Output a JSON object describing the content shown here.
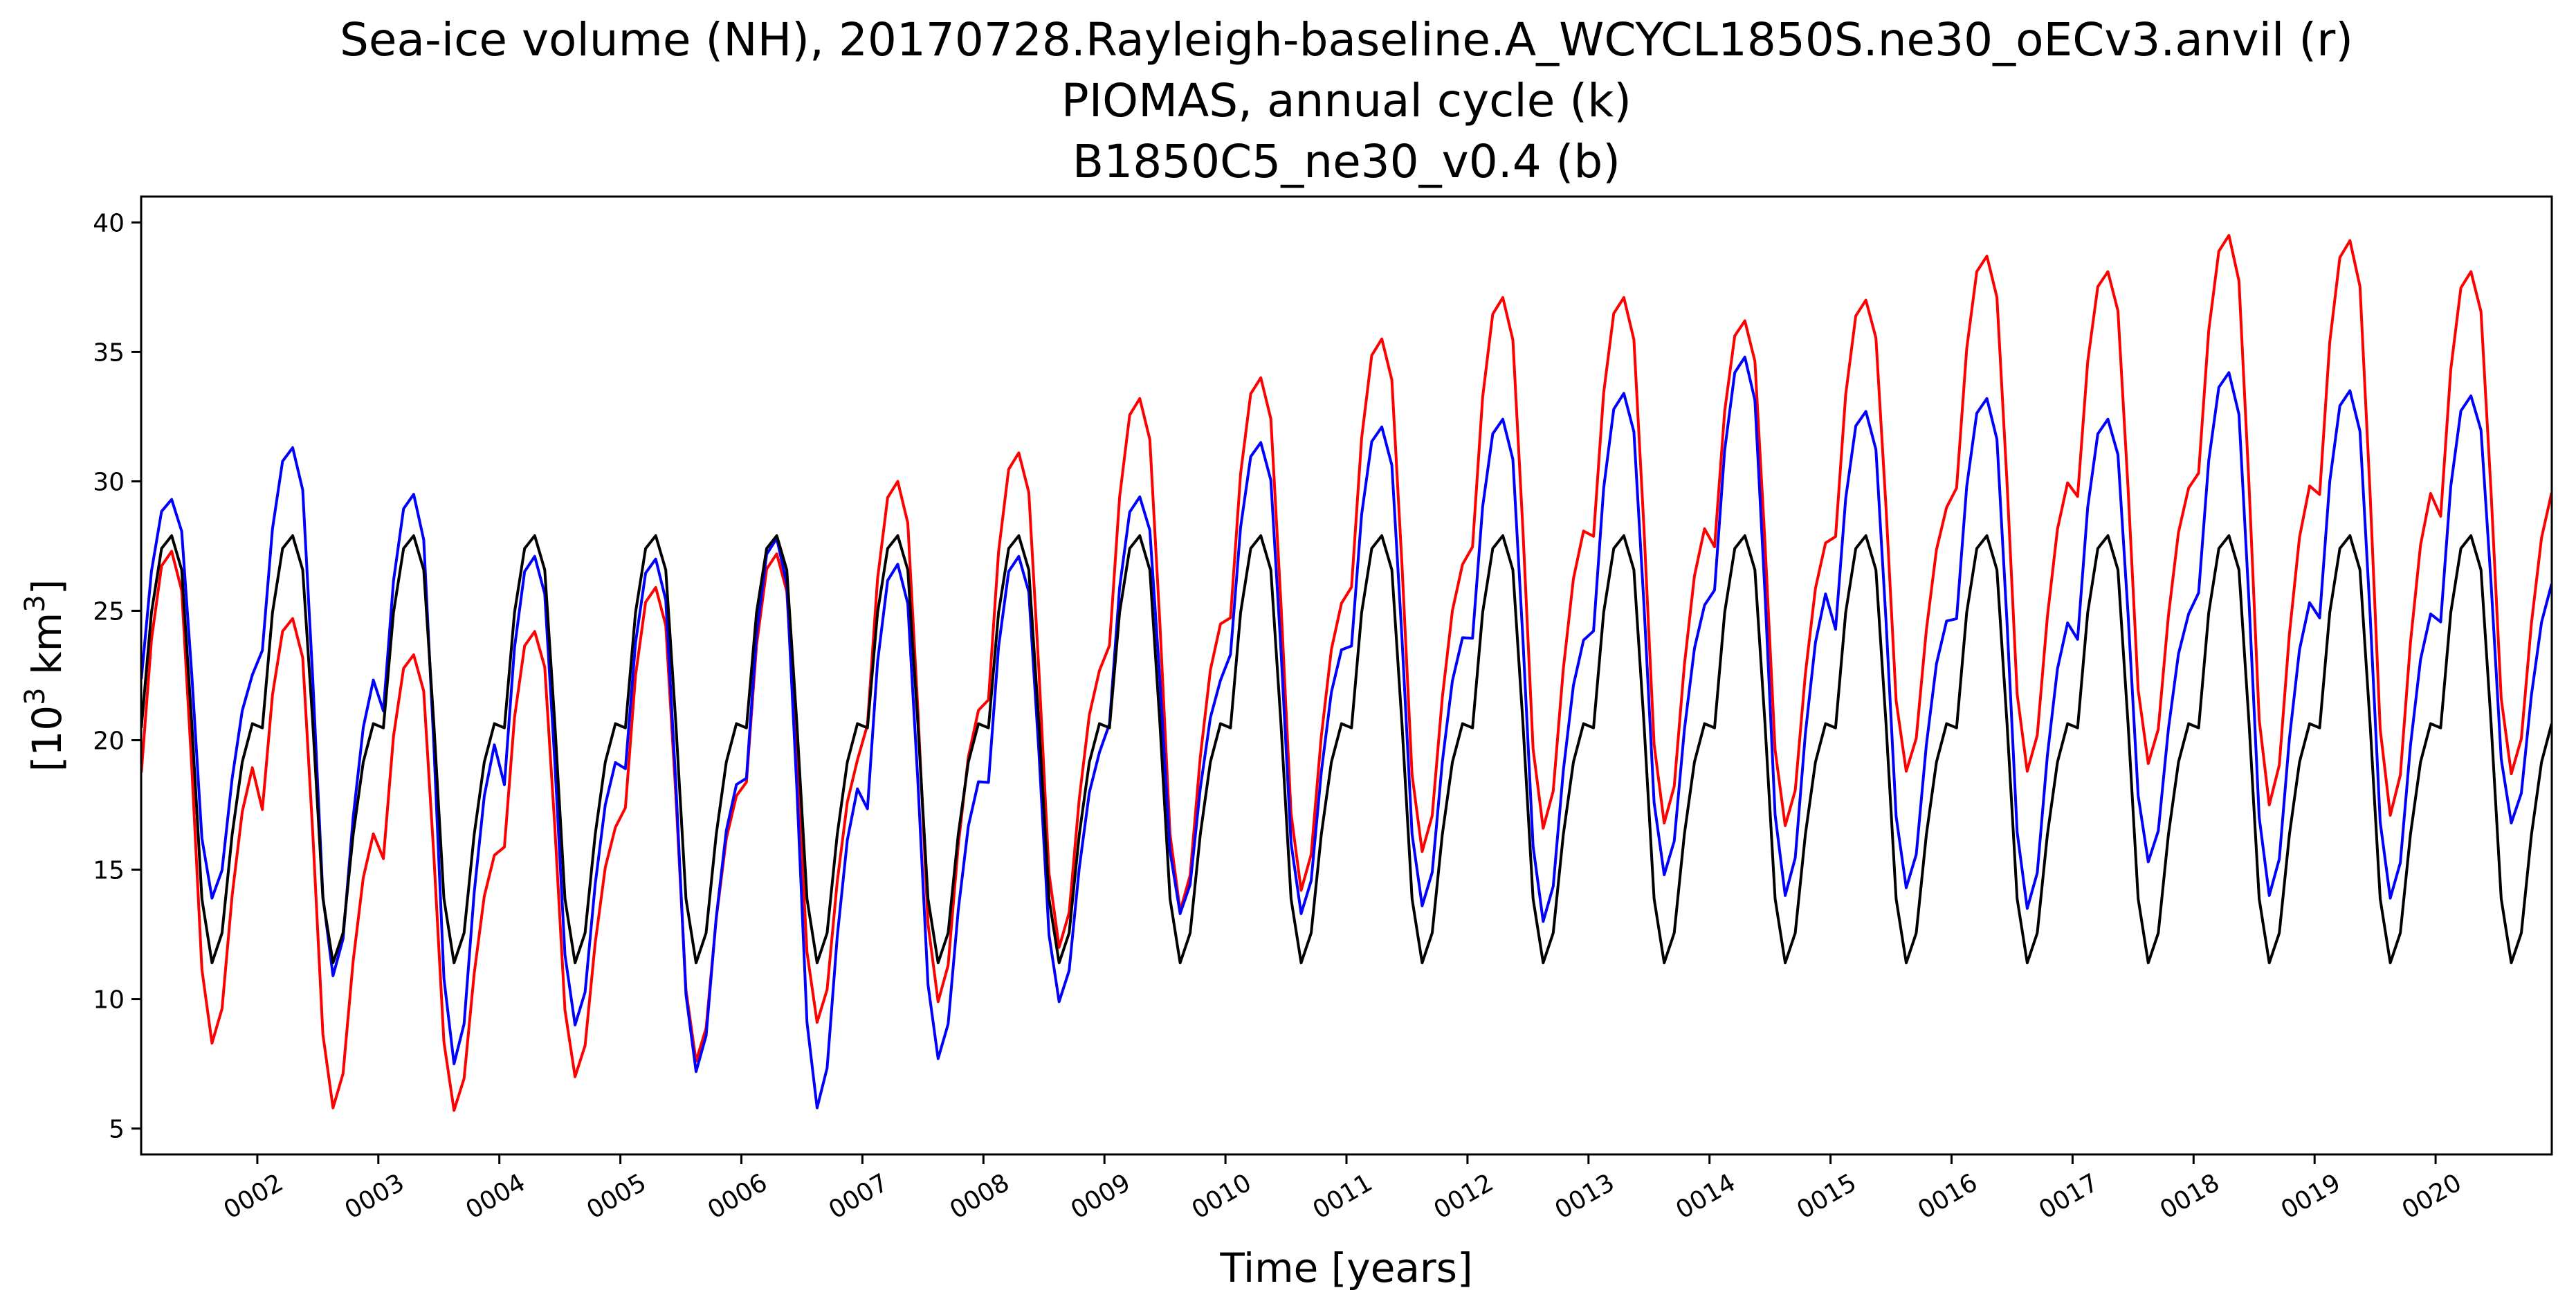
{
  "chart_data": {
    "type": "line",
    "title_lines": [
      "Sea-ice volume (NH), 20170728.Rayleigh-baseline.A_WCYCL1850S.ne30_oECv3.anvil (r)",
      "PIOMAS, annual cycle (k)",
      "B1850C5_ne30_v0.4 (b)"
    ],
    "xlabel": "Time [years]",
    "ylabel_parts": {
      "pre": "[10",
      "sup1": "3",
      "mid": " km",
      "sup2": "3",
      "post": "]"
    },
    "xlim": [
      1.04,
      20.96
    ],
    "ylim": [
      4,
      41
    ],
    "x_ticks": [
      2,
      3,
      4,
      5,
      6,
      7,
      8,
      9,
      10,
      11,
      12,
      13,
      14,
      15,
      16,
      17,
      18,
      19,
      20
    ],
    "x_tick_labels": [
      "0002",
      "0003",
      "0004",
      "0005",
      "0006",
      "0007",
      "0008",
      "0009",
      "0010",
      "0011",
      "0012",
      "0013",
      "0014",
      "0015",
      "0016",
      "0017",
      "0018",
      "0019",
      "0020"
    ],
    "y_ticks": [
      5,
      10,
      15,
      20,
      25,
      30,
      35,
      40
    ],
    "y_tick_labels": [
      "5",
      "10",
      "15",
      "20",
      "25",
      "30",
      "35",
      "40"
    ],
    "grid": false,
    "legend": "none",
    "x_start": 1.042,
    "x_step": 0.0833333,
    "series": [
      {
        "color": "#ff0000",
        "peaks": [
          27.3,
          24.7,
          23.3,
          24.2,
          25.9,
          27.2,
          30.0,
          31.1,
          33.2,
          34.0,
          35.5,
          37.1,
          37.1,
          36.2,
          37.0,
          38.7,
          38.1,
          39.5,
          39.3,
          38.1
        ],
        "troughs": [
          8.3,
          5.8,
          5.7,
          7.0,
          7.6,
          9.1,
          9.9,
          12.0,
          13.4,
          14.2,
          15.7,
          16.6,
          16.8,
          16.7,
          18.8,
          18.8,
          19.1,
          17.5,
          17.1,
          18.7
        ]
      },
      {
        "color": "#0000ff",
        "peaks": [
          29.3,
          31.3,
          29.5,
          27.1,
          27.0,
          27.8,
          26.8,
          27.1,
          29.4,
          31.5,
          32.1,
          32.4,
          33.4,
          34.8,
          32.7,
          33.2,
          32.4,
          34.2,
          33.5,
          33.3
        ],
        "troughs": [
          13.9,
          10.9,
          7.5,
          9.0,
          7.2,
          5.8,
          7.7,
          9.9,
          13.3,
          13.3,
          13.6,
          13.0,
          14.8,
          14.0,
          14.3,
          13.5,
          15.3,
          14.0,
          13.9,
          16.8
        ]
      },
      {
        "color": "#000000",
        "peaks": [
          27.9,
          27.9,
          27.9,
          27.9,
          27.9,
          27.9,
          27.9,
          27.9,
          27.9,
          27.9,
          27.9,
          27.9,
          27.9,
          27.9,
          27.9,
          27.9,
          27.9,
          27.9,
          27.9,
          27.9
        ],
        "troughs": [
          11.4,
          11.4,
          11.4,
          11.4,
          11.4,
          11.4,
          11.4,
          11.4,
          11.4,
          11.4,
          11.4,
          11.4,
          11.4,
          11.4,
          11.4,
          11.4,
          11.4,
          11.4,
          11.4,
          11.4
        ]
      }
    ]
  }
}
